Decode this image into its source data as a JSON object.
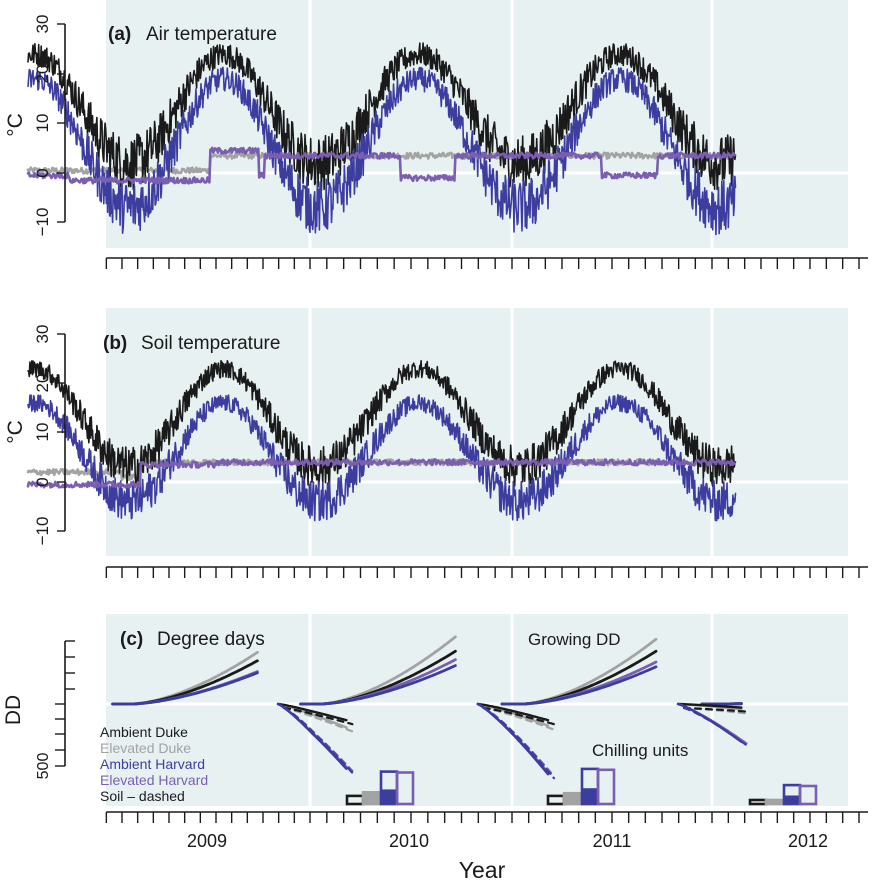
{
  "colors": {
    "background": "#e8f1f2",
    "ambient_duke": "#1a1a1a",
    "elevated_duke": "#a3a3a3",
    "ambient_harvard": "#3d3da0",
    "elevated_harvard": "#7a5fb0",
    "gridline": "#ffffff"
  },
  "xaxis": {
    "label": "Year",
    "year_labels": [
      "2009",
      "2010",
      "2011",
      "2012"
    ]
  },
  "panels": {
    "a": {
      "tag": "(a)",
      "title": "Air temperature",
      "ylabel": "°C",
      "yticks": [
        "30",
        "20",
        "10",
        "0",
        "−10"
      ]
    },
    "b": {
      "tag": "(b)",
      "title": "Soil temperature",
      "ylabel": "°C",
      "yticks": [
        "30",
        "20",
        "10",
        "0",
        "−10"
      ]
    },
    "c": {
      "tag": "(c)",
      "title": "Degree days",
      "ylabel": "DD",
      "ytick_500": "500",
      "growing_label": "Growing DD",
      "chilling_label": "Chilling units",
      "legend": [
        {
          "label": "Ambient Duke",
          "color": "#1a1a1a"
        },
        {
          "label": "Elevated Duke",
          "color": "#a3a3a3"
        },
        {
          "label": "Ambient Harvard",
          "color": "#3d3da0"
        },
        {
          "label": "Elevated Harvard",
          "color": "#7a5fb0"
        },
        {
          "label": "Soil – dashed",
          "color": "#1a1a1a"
        }
      ]
    }
  },
  "chart_data": [
    {
      "type": "line",
      "title": "Air temperature",
      "ylabel": "°C",
      "ylim": [
        -15,
        30
      ],
      "x_unit": "year",
      "xlim": [
        2008.5,
        2012.5
      ],
      "approximate_envelope": true,
      "series": [
        {
          "name": "Ambient Duke",
          "seasonal_mean_peak": 24,
          "seasonal_mean_trough": 2,
          "daily_noise": 4
        },
        {
          "name": "Ambient Harvard",
          "seasonal_mean_peak": 19,
          "seasonal_mean_trough": -7,
          "daily_noise": 4
        },
        {
          "name": "Elevated Duke",
          "segment_levels": [
            [
              2008.5,
              0.5
            ],
            [
              2009.47,
              3.5
            ],
            [
              2010.45,
              3.5
            ],
            [
              2011.45,
              3.5
            ],
            [
              2012.1,
              3.5
            ]
          ]
        },
        {
          "name": "Elevated Harvard",
          "segment_levels": [
            [
              2008.5,
              -0.5
            ],
            [
              2008.72,
              -1.5
            ],
            [
              2009.47,
              4.5
            ],
            [
              2009.73,
              -0.5
            ],
            [
              2009.76,
              3.5
            ],
            [
              2010.45,
              -1
            ],
            [
              2010.72,
              3.5
            ],
            [
              2011.45,
              -0.5
            ],
            [
              2011.73,
              3.5
            ]
          ]
        }
      ]
    },
    {
      "type": "line",
      "title": "Soil temperature",
      "ylabel": "°C",
      "ylim": [
        -15,
        30
      ],
      "x_unit": "year",
      "xlim": [
        2008.5,
        2012.5
      ],
      "approximate_envelope": true,
      "series": [
        {
          "name": "Ambient Duke",
          "seasonal_mean_peak": 23,
          "seasonal_mean_trough": 3,
          "daily_noise": 3
        },
        {
          "name": "Ambient Harvard",
          "seasonal_mean_peak": 16,
          "seasonal_mean_trough": -4,
          "daily_noise": 3
        },
        {
          "name": "Elevated Duke",
          "segment_levels": [
            [
              2008.5,
              2
            ],
            [
              2009.0,
              1
            ],
            [
              2009.1,
              4
            ],
            [
              2009.47,
              4
            ],
            [
              2012.1,
              4
            ]
          ]
        },
        {
          "name": "Elevated Harvard",
          "segment_levels": [
            [
              2008.5,
              -0.5
            ],
            [
              2009.1,
              3.5
            ],
            [
              2009.5,
              4
            ],
            [
              2012.1,
              4
            ]
          ]
        }
      ]
    },
    {
      "type": "line",
      "title": "Degree days",
      "ylabel": "DD",
      "approximate": true,
      "growing_dd_by_year": {
        "years": [
          "2009",
          "2010",
          "2011",
          "2012"
        ],
        "Ambient Duke": [
          1800,
          2200,
          2200,
          20
        ],
        "Elevated Duke": [
          2150,
          2800,
          2700,
          20
        ],
        "Ambient Harvard": [
          1300,
          1600,
          1550,
          10
        ],
        "Elevated Harvard": [
          1350,
          1850,
          1750,
          10
        ]
      },
      "chilling_units_by_year": {
        "years": [
          "2010",
          "2011",
          "2012"
        ],
        "Ambient Duke": [
          -450,
          -450,
          -100
        ],
        "Elevated Duke": [
          -650,
          -600,
          -150
        ],
        "Ambient Harvard": [
          -1800,
          -1950,
          -1050
        ],
        "Elevated Harvard": [
          -1750,
          -1900,
          -1000
        ]
      }
    }
  ]
}
